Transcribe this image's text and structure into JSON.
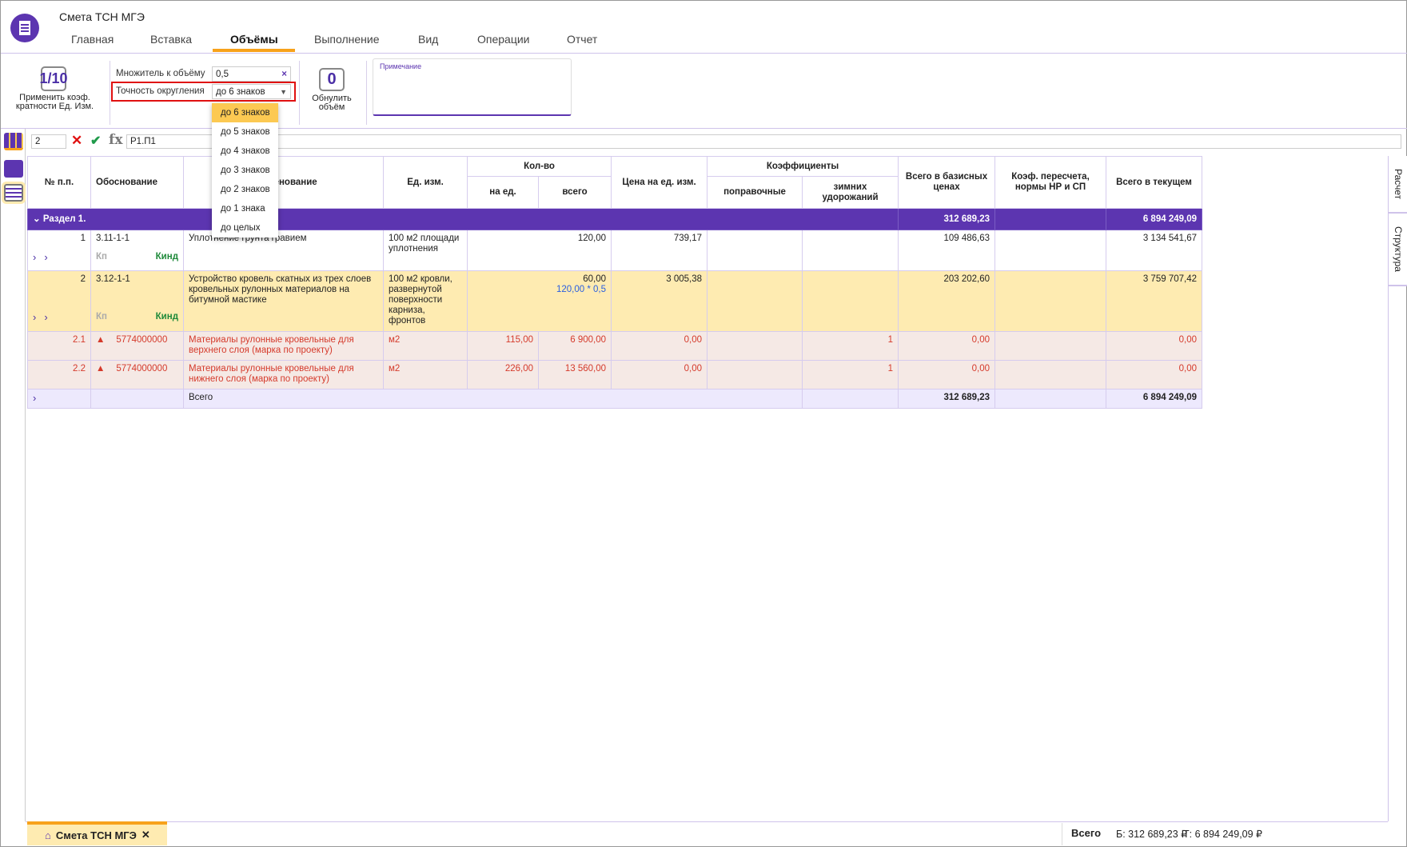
{
  "app": {
    "title": "Смета ТСН МГЭ",
    "icon": "spreadsheet-doc-icon"
  },
  "tabs": [
    "Главная",
    "Вставка",
    "Объёмы",
    "Выполнение",
    "Вид",
    "Операции",
    "Отчет"
  ],
  "active_tab": "Объёмы",
  "ribbon": {
    "apply_btn_icon_text": "1/10",
    "apply_btn_label1": "Применить коэф.",
    "apply_btn_label2": "кратности Ед. Изм.",
    "multiplier_label": "Множитель к объёму",
    "multiplier_value": "0,5",
    "clear_icon": "×",
    "rounding_label": "Точность округления",
    "rounding_value": "до 6 знаков",
    "zero_btn_icon_text": "0",
    "zero_btn_label1": "Обнулить",
    "zero_btn_label2": "объём",
    "note_placeholder": "Примечание"
  },
  "dropdown": {
    "options": [
      "до 6 знаков",
      "до 5 знаков",
      "до 4 знаков",
      "до 3 знаков",
      "до 2 знаков",
      "до 1 знака",
      "до целых"
    ],
    "selected": "до 6 знаков"
  },
  "formula_bar": {
    "cell": "2",
    "fx": "fx",
    "value": "Р1.П1"
  },
  "table": {
    "headers": {
      "num": "№ п.п.",
      "basis": "Обоснование",
      "name": "Наименование",
      "unit": "Ед. изм.",
      "qty": "Кол-во",
      "qty_per": "на ед.",
      "qty_total": "всего",
      "price": "Цена на ед. изм.",
      "coefs": "Коэффициенты",
      "coef_corr": "поправочные",
      "coef_winter": "зимних удорожаний",
      "total_base": "Всего в базисных ценах",
      "coef_recalc": "Коэф. пересчета, нормы НР и СП",
      "total_current": "Всего в текущем"
    },
    "section": {
      "label": "Раздел 1.",
      "total_base": "312 689,23",
      "total_current": "6 894 249,09"
    },
    "rows": [
      {
        "num": "1",
        "basis": "3.11-1-1",
        "name": "Уплотнение грунта гравием",
        "unit": "100 м2 площади уплотнения",
        "qty_per": "",
        "qty_total": "120,00",
        "qty_formula": "",
        "price": "739,17",
        "coef_winter": "",
        "total_base": "109 486,63",
        "total_current": "3 134 541,67",
        "kp": "Кп",
        "kind": "Кинд"
      },
      {
        "num": "2",
        "basis": "3.12-1-1",
        "name": "Устройство кровель скатных из трех слоев кровельных рулонных материалов на битумной мастике",
        "unit": "100 м2 кровли, развернутой поверхности карниза, фронтов",
        "qty_per": "",
        "qty_total": "60,00",
        "qty_formula": "120,00 * 0,5",
        "price": "3 005,38",
        "coef_winter": "",
        "total_base": "203 202,60",
        "total_current": "3 759 707,42",
        "kp": "Кп",
        "kind": "Кинд"
      },
      {
        "num": "2.1",
        "basis": "5774000000",
        "name": "Материалы рулонные кровельные для верхнего слоя (марка по проекту)",
        "unit": "м2",
        "qty_per": "115,00",
        "qty_total": "6 900,00",
        "price": "0,00",
        "coef_winter": "1",
        "total_base": "0,00",
        "total_current": "0,00"
      },
      {
        "num": "2.2",
        "basis": "5774000000",
        "name": "Материалы рулонные кровельные для нижнего слоя (марка по проекту)",
        "unit": "м2",
        "qty_per": "226,00",
        "qty_total": "13 560,00",
        "price": "0,00",
        "coef_winter": "1",
        "total_base": "0,00",
        "total_current": "0,00"
      }
    ],
    "total": {
      "label": "Всего",
      "total_base": "312 689,23",
      "total_current": "6 894 249,09"
    }
  },
  "side_tabs": [
    "Расчет",
    "Структура"
  ],
  "bottom": {
    "doc_tab": "Смета ТСН МГЭ",
    "close": "✕",
    "total_label": "Всего",
    "base": "Б: 312 689,23 ₽",
    "current": "Т: 6 894 249,09 ₽"
  },
  "colors": {
    "accent": "#5c35b0",
    "tab_underline": "#f7a21b",
    "selected_row": "#feebb1",
    "material_row": "#f5e9e5",
    "material_text": "#d53a2b",
    "total_row": "#ede9fd"
  }
}
